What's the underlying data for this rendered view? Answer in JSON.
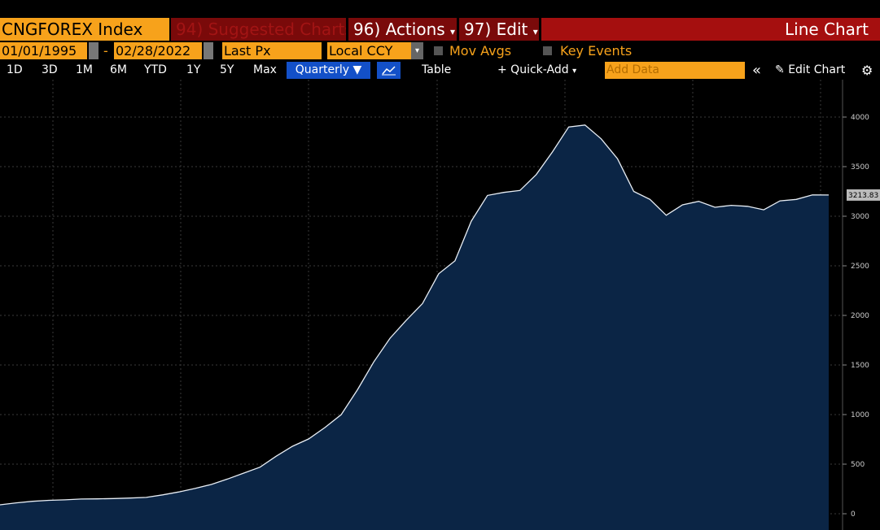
{
  "toolbar": {
    "security": "CNGFOREX Index",
    "suggested": "94) Suggested Charts",
    "actions": "96) Actions",
    "edit": "97) Edit",
    "chart_type": "Line Chart",
    "start_date": "01/01/1995",
    "end_date": "02/28/2022",
    "field": "Last Px",
    "currency": "Local CCY",
    "mov_avgs": "Mov Avgs",
    "key_events": "Key Events",
    "periods": [
      "1D",
      "3D",
      "1M",
      "6M",
      "YTD",
      "1Y",
      "5Y",
      "Max"
    ],
    "frequency": "Quarterly ▼",
    "table": "Table",
    "quick_add": "+ Quick-Add",
    "add_data": "Add Data",
    "edit_chart": "Edit Chart"
  },
  "chart_data": {
    "type": "area",
    "color": "#e8eef5",
    "fill": "#0b2545",
    "values": [
      90,
      110,
      125,
      135,
      140,
      148,
      150,
      153,
      158,
      165,
      190,
      220,
      255,
      295,
      350,
      410,
      470,
      580,
      680,
      755,
      870,
      1000,
      1250,
      1530,
      1770,
      1950,
      2120,
      2420,
      2550,
      2950,
      3210,
      3240,
      3260,
      3420,
      3650,
      3900,
      3920,
      3780,
      3580,
      3250,
      3170,
      3010,
      3115,
      3150,
      3090,
      3110,
      3100,
      3065,
      3155,
      3170,
      3215,
      3213.83
    ],
    "ylim": [
      -164,
      4377
    ],
    "yticks": [
      0,
      500,
      1000,
      1500,
      2000,
      2500,
      3000,
      3500,
      4000
    ],
    "grid": true
  }
}
